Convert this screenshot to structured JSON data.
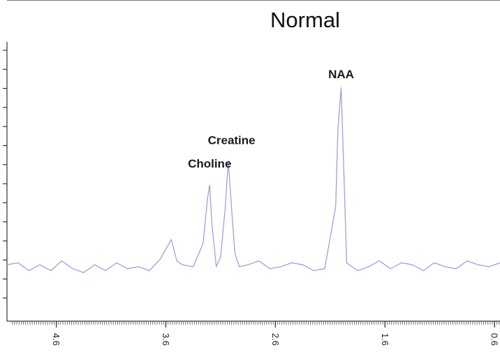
{
  "chart_data": {
    "type": "line",
    "title": "Normal",
    "xlabel": "",
    "ylabel": "",
    "x_reversed": true,
    "x_rotated_tick_labels": true,
    "xlim": [
      5.05,
      0.55
    ],
    "ylim": [
      0,
      14
    ],
    "grid": false,
    "series_color": "#9f9fe0",
    "xticks": [
      {
        "value": 4.6,
        "label": "4.6"
      },
      {
        "value": 3.6,
        "label": "3.6"
      },
      {
        "value": 2.6,
        "label": "2.6"
      },
      {
        "value": 1.6,
        "label": "1.6"
      },
      {
        "value": 0.6,
        "label": "0.6"
      }
    ],
    "annotations": [
      {
        "text": "Choline",
        "x": 3.2,
        "y": 7.9
      },
      {
        "text": "Creatine",
        "x": 3.0,
        "y": 9.1
      },
      {
        "text": "NAA",
        "x": 2.0,
        "y": 12.5
      }
    ],
    "series": [
      {
        "x": [
          5.05,
          4.95,
          4.85,
          4.75,
          4.65,
          4.55,
          4.45,
          4.35,
          4.25,
          4.15,
          4.05,
          3.95,
          3.85,
          3.75,
          3.65,
          3.55,
          3.5,
          3.45,
          3.35,
          3.26,
          3.22,
          3.2,
          3.18,
          3.14,
          3.1,
          3.06,
          3.03,
          3.0,
          2.97,
          2.93,
          2.85,
          2.75,
          2.65,
          2.55,
          2.45,
          2.35,
          2.25,
          2.15,
          2.05,
          2.03,
          2.0,
          1.97,
          1.95,
          1.85,
          1.75,
          1.65,
          1.55,
          1.45,
          1.35,
          1.25,
          1.15,
          1.05,
          0.95,
          0.85,
          0.75,
          0.65,
          0.55
        ],
        "y": [
          2.9,
          3.0,
          2.6,
          2.9,
          2.6,
          3.1,
          2.7,
          2.5,
          2.9,
          2.6,
          3.0,
          2.7,
          2.8,
          2.6,
          3.2,
          4.2,
          3.1,
          2.9,
          2.8,
          4.0,
          6.3,
          7.0,
          5.0,
          2.8,
          3.3,
          5.7,
          8.2,
          5.8,
          3.5,
          2.8,
          2.9,
          3.1,
          2.7,
          2.8,
          3.0,
          2.9,
          2.6,
          2.7,
          5.9,
          9.8,
          12.0,
          6.8,
          3.0,
          2.6,
          2.8,
          3.1,
          2.7,
          3.0,
          2.9,
          2.6,
          3.0,
          2.8,
          2.7,
          3.1,
          2.9,
          2.8,
          3.0
        ]
      }
    ]
  }
}
